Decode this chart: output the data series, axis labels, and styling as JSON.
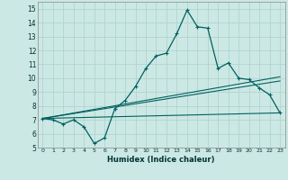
{
  "xlabel": "Humidex (Indice chaleur)",
  "bg_color": "#cce8e4",
  "grid_color": "#b0d4ce",
  "line_color": "#006060",
  "xlim": [
    -0.5,
    23.5
  ],
  "ylim": [
    5,
    15.5
  ],
  "xticks": [
    0,
    1,
    2,
    3,
    4,
    5,
    6,
    7,
    8,
    9,
    10,
    11,
    12,
    13,
    14,
    15,
    16,
    17,
    18,
    19,
    20,
    21,
    22,
    23
  ],
  "yticks": [
    5,
    6,
    7,
    8,
    9,
    10,
    11,
    12,
    13,
    14,
    15
  ],
  "curve1_x": [
    0,
    1,
    2,
    3,
    4,
    5,
    6,
    7,
    8,
    9,
    10,
    11,
    12,
    13,
    14,
    15,
    16,
    17,
    18,
    19,
    20,
    21,
    22,
    23
  ],
  "curve1_y": [
    7.1,
    7.0,
    6.7,
    7.0,
    6.5,
    5.3,
    5.7,
    7.8,
    8.4,
    9.4,
    10.7,
    11.6,
    11.8,
    13.2,
    14.9,
    13.7,
    13.6,
    10.7,
    11.1,
    10.0,
    9.9,
    9.3,
    8.8,
    7.5
  ],
  "line1_x": [
    0,
    23
  ],
  "line1_y": [
    7.1,
    7.5
  ],
  "line2_x": [
    0,
    23
  ],
  "line2_y": [
    7.1,
    9.8
  ],
  "line3_x": [
    0,
    23
  ],
  "line3_y": [
    7.1,
    10.1
  ]
}
